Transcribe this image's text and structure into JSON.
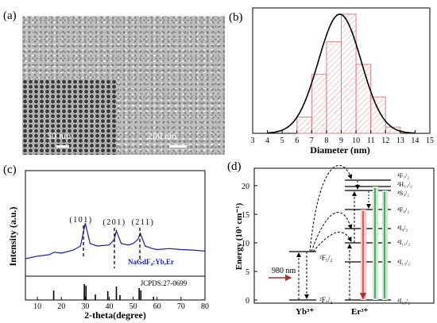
{
  "panel_a": {
    "label": "(a)",
    "scalebar_inset": "50 nm",
    "scalebar_main": "200 nm"
  },
  "panel_c": {
    "label": "(c)",
    "peaks": [
      "(101)",
      "(201)",
      "(211)"
    ],
    "sample": "NaGdF₄:Yb,Er",
    "reference": "JCPDS:27-0699"
  },
  "panel_d": {
    "label": "(d)",
    "ylabel": "Energy (10³ cm⁻¹)",
    "yticks": [
      "0",
      "5",
      "10",
      "15",
      "20"
    ],
    "excitation": "980 nm",
    "yb_label": "Yb³⁺",
    "er_label": "Er³⁺",
    "yb_levels": [
      "²F₅/₂",
      "²F₇/₂"
    ],
    "er_levels": [
      "⁴F₇/₂",
      "²H₁₁/₂",
      "⁴S₃/₂",
      "⁴F₉/₂",
      "⁴I₉/₂",
      "⁴I₁₁/₂",
      "⁴I₁₃/₂",
      "⁴I₁₅/₂"
    ]
  },
  "chart_data": [
    {
      "type": "bar",
      "panel": "(b)",
      "xlabel": "Diameter (nm)",
      "ylabel": "",
      "xlim": [
        3,
        15
      ],
      "xticks": [
        3,
        4,
        5,
        6,
        7,
        8,
        9,
        10,
        11,
        12,
        13,
        14,
        15
      ],
      "bins": [
        [
          6,
          7
        ],
        [
          7,
          8
        ],
        [
          8,
          9
        ],
        [
          9,
          10
        ],
        [
          10,
          11
        ],
        [
          11,
          12
        ],
        [
          12,
          13
        ]
      ],
      "values": [
        0.13,
        0.47,
        0.73,
        0.95,
        0.55,
        0.29,
        0.05
      ],
      "fit": {
        "type": "gaussian",
        "center": 8.9,
        "sigma": 1.45,
        "peak": 0.95
      }
    },
    {
      "type": "line",
      "panel": "(c)",
      "xlabel": "2-theta(degree)",
      "ylabel": "Intensity (a.u.)",
      "xlim": [
        5,
        80
      ],
      "xticks": [
        10,
        20,
        30,
        40,
        50,
        60,
        70,
        80
      ],
      "series": [
        {
          "name": "NaGdF₄:Yb,Er",
          "x": [
            5,
            10,
            15,
            17,
            20,
            25,
            28,
            30,
            32,
            35,
            40,
            42,
            43,
            45,
            48,
            50,
            52,
            53,
            55,
            58,
            60,
            65,
            70,
            75,
            80
          ],
          "y": [
            0.25,
            0.3,
            0.33,
            0.38,
            0.36,
            0.42,
            0.5,
            0.95,
            0.55,
            0.5,
            0.52,
            0.62,
            0.8,
            0.55,
            0.52,
            0.55,
            0.63,
            0.75,
            0.5,
            0.45,
            0.43,
            0.45,
            0.43,
            0.42,
            0.4
          ]
        }
      ],
      "reference_lines": {
        "name": "JCPDS:27-0699",
        "x": [
          16.8,
          29.6,
          30.3,
          34.2,
          39.4,
          43.0,
          44.5,
          52.5,
          53.2,
          58.5
        ],
        "h": [
          0.6,
          1.0,
          0.9,
          0.35,
          0.55,
          0.85,
          0.3,
          0.75,
          0.6,
          0.2
        ]
      }
    }
  ]
}
